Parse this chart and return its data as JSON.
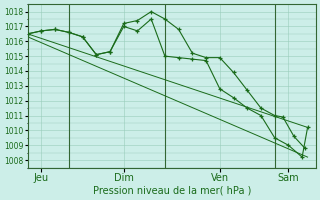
{
  "background_color": "#cceee8",
  "grid_color": "#99ccbb",
  "line_color": "#1a6b1a",
  "marker_color": "#1a6b1a",
  "xlabel_text": "Pression niveau de la mer( hPa )",
  "ylim": [
    1007.5,
    1018.5
  ],
  "yticks": [
    1008,
    1009,
    1010,
    1011,
    1012,
    1013,
    1014,
    1015,
    1016,
    1017,
    1018
  ],
  "xtick_labels": [
    "Jeu",
    "Dim",
    "Ven",
    "Sam"
  ],
  "xtick_positions": [
    0.5,
    3.5,
    7.0,
    9.5
  ],
  "vline_positions": [
    1.5,
    5.0,
    9.0
  ],
  "vline_color": "#336633",
  "series_detailed_1": {
    "x": [
      0.0,
      0.5,
      1.0,
      1.5,
      2.0,
      2.5,
      3.0,
      3.5,
      4.0,
      4.5,
      5.0,
      5.5,
      6.0,
      6.5,
      7.0,
      7.5,
      8.0,
      8.5,
      9.0,
      9.3,
      9.7,
      10.1
    ],
    "y": [
      1016.5,
      1016.7,
      1016.8,
      1016.6,
      1016.3,
      1015.1,
      1015.3,
      1017.2,
      1017.4,
      1018.0,
      1017.5,
      1016.8,
      1015.2,
      1014.9,
      1014.9,
      1013.9,
      1012.7,
      1011.5,
      1011.0,
      1010.9,
      1009.6,
      1008.8
    ]
  },
  "series_detailed_2": {
    "x": [
      0.0,
      0.5,
      1.0,
      1.5,
      2.0,
      2.5,
      3.0,
      3.5,
      4.0,
      4.5,
      5.0,
      5.5,
      6.0,
      6.5,
      7.0,
      7.5,
      8.0,
      8.5,
      9.0,
      9.5,
      10.0,
      10.2
    ],
    "y": [
      1016.5,
      1016.7,
      1016.8,
      1016.6,
      1016.3,
      1015.1,
      1015.3,
      1017.0,
      1016.7,
      1017.5,
      1015.0,
      1014.9,
      1014.8,
      1014.7,
      1012.8,
      1012.2,
      1011.5,
      1011.0,
      1009.5,
      1009.0,
      1008.2,
      1010.2
    ]
  },
  "series_trend_1": {
    "x": [
      0.0,
      10.2
    ],
    "y": [
      1016.5,
      1010.2
    ]
  },
  "series_trend_2": {
    "x": [
      0.0,
      10.2
    ],
    "y": [
      1016.3,
      1008.2
    ]
  },
  "figsize": [
    3.2,
    2.0
  ],
  "dpi": 100
}
